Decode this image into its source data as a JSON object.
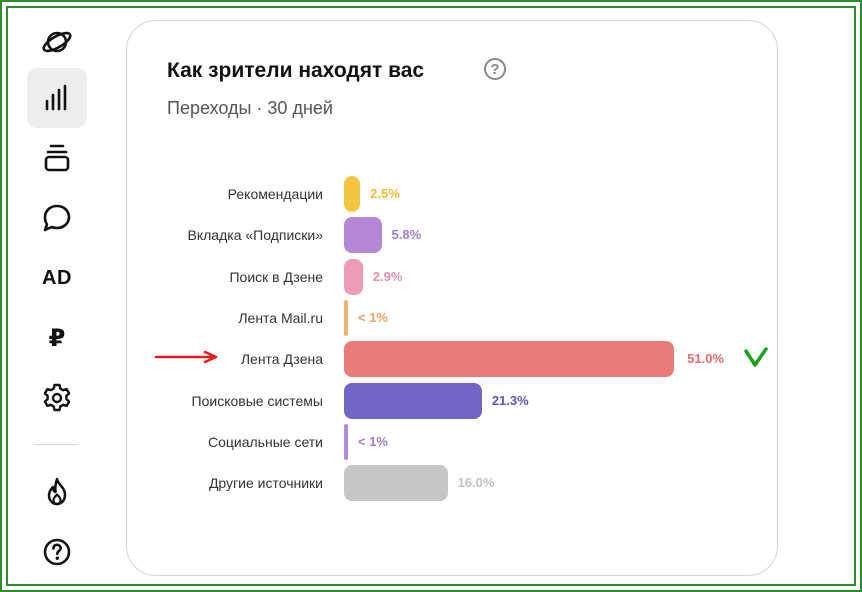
{
  "card": {
    "title": "Как зрители находят вас",
    "help_glyph": "?",
    "subtitle": "Переходы · 30 дней"
  },
  "sidebar": {
    "items": [
      {
        "icon": "planet-icon"
      },
      {
        "icon": "bar-chart-icon",
        "active": true
      },
      {
        "icon": "layers-icon"
      },
      {
        "icon": "chat-bubble-icon"
      },
      {
        "icon": "ad-icon",
        "text": "AD"
      },
      {
        "icon": "ruble-icon",
        "text": "₽"
      },
      {
        "icon": "gear-icon"
      },
      {
        "icon": "flame-icon"
      },
      {
        "icon": "question-icon"
      }
    ]
  },
  "chart_data": {
    "type": "bar",
    "orientation": "horizontal",
    "title": "Как зрители находят вас",
    "subtitle": "Переходы · 30 дней",
    "categories": [
      "Рекомендации",
      "Вкладка «Подписки»",
      "Поиск в Дзене",
      "Лента Mail.ru",
      "Лента Дзена",
      "Поисковые системы",
      "Социальные сети",
      "Другие источники"
    ],
    "values": [
      2.5,
      5.8,
      2.9,
      0.5,
      51.0,
      21.3,
      0.5,
      16.0
    ],
    "value_labels": [
      "2.5%",
      "5.8%",
      "2.9%",
      "< 1%",
      "51.0%",
      "21.3%",
      "< 1%",
      "16.0%"
    ],
    "colors": [
      "#f5c542",
      "#b488d6",
      "#ec9bb9",
      "#f0b070",
      "#ea7b7b",
      "#6f66c8",
      "#b38ad9",
      "#c6c6c6"
    ],
    "value_colors": [
      "#efbb2c",
      "#a57ccb",
      "#e58fb0",
      "#eda35e",
      "#e46b6b",
      "#5f55bd",
      "#a57ccb",
      "#c2c2c2"
    ],
    "max_value": 51.0
  },
  "annotations": {
    "arrow_color": "#e8191d",
    "check_color": "#15a315"
  }
}
